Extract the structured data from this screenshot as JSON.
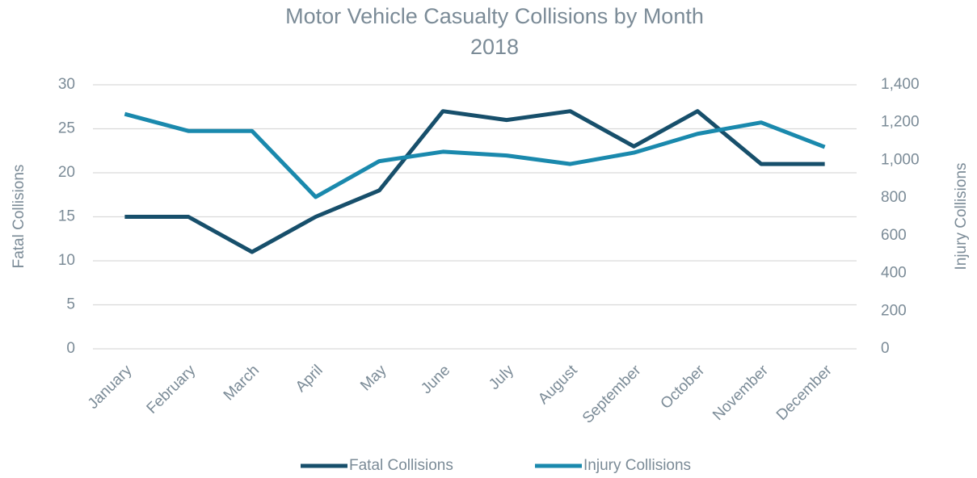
{
  "chart_data": {
    "type": "line",
    "title": "Motor Vehicle Casualty Collisions by Month",
    "subtitle": "2018",
    "ylabel": "Fatal Collisions",
    "y2label": "Injury Collisions",
    "categories": [
      "January",
      "February",
      "March",
      "April",
      "May",
      "June",
      "July",
      "August",
      "September",
      "October",
      "November",
      "December"
    ],
    "series": [
      {
        "name": "Fatal Collisions",
        "color": "#174f6b",
        "values": [
          15,
          15,
          11,
          15,
          18,
          27,
          26,
          27,
          23,
          27,
          21,
          21
        ]
      },
      {
        "name": "Injury Collisions",
        "color": "#1a89ad",
        "axis": "y2",
        "values": [
          1245,
          1155,
          1155,
          805,
          995,
          1045,
          1025,
          980,
          1040,
          1140,
          1200,
          1070
        ]
      }
    ],
    "ylim": [
      0,
      30
    ],
    "yticks": [
      0,
      5,
      10,
      15,
      20,
      25,
      30
    ],
    "y2lim": [
      0,
      1400
    ],
    "y2ticks": [
      0,
      200,
      400,
      600,
      800,
      {
        "value": 1000,
        "label": "1,000"
      },
      {
        "value": 1200,
        "label": "1,200"
      },
      {
        "value": 1400,
        "label": "1,400"
      }
    ],
    "grid": true,
    "legend": "bottom"
  }
}
